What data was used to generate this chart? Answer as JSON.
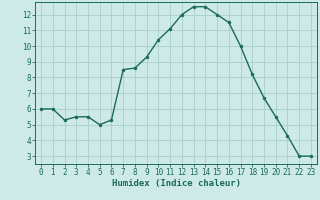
{
  "x": [
    0,
    1,
    2,
    3,
    4,
    5,
    6,
    7,
    8,
    9,
    10,
    11,
    12,
    13,
    14,
    15,
    16,
    17,
    18,
    19,
    20,
    21,
    22,
    23
  ],
  "y": [
    6.0,
    6.0,
    5.3,
    5.5,
    5.5,
    5.0,
    5.3,
    8.5,
    8.6,
    9.3,
    10.4,
    11.1,
    12.0,
    12.5,
    12.5,
    12.0,
    11.5,
    10.0,
    8.2,
    6.7,
    5.5,
    4.3,
    3.0,
    3.0
  ],
  "line_color": "#1a6b5a",
  "marker": "o",
  "markersize": 2.0,
  "linewidth": 1.0,
  "xlabel": "Humidex (Indice chaleur)",
  "xlim": [
    -0.5,
    23.5
  ],
  "ylim": [
    2.5,
    12.8
  ],
  "xticks": [
    0,
    1,
    2,
    3,
    4,
    5,
    6,
    7,
    8,
    9,
    10,
    11,
    12,
    13,
    14,
    15,
    16,
    17,
    18,
    19,
    20,
    21,
    22,
    23
  ],
  "yticks": [
    3,
    4,
    5,
    6,
    7,
    8,
    9,
    10,
    11,
    12
  ],
  "bg_color": "#ceeae6",
  "grid_color": "#a8cfc9",
  "xlabel_fontsize": 6.5,
  "tick_fontsize": 5.5
}
